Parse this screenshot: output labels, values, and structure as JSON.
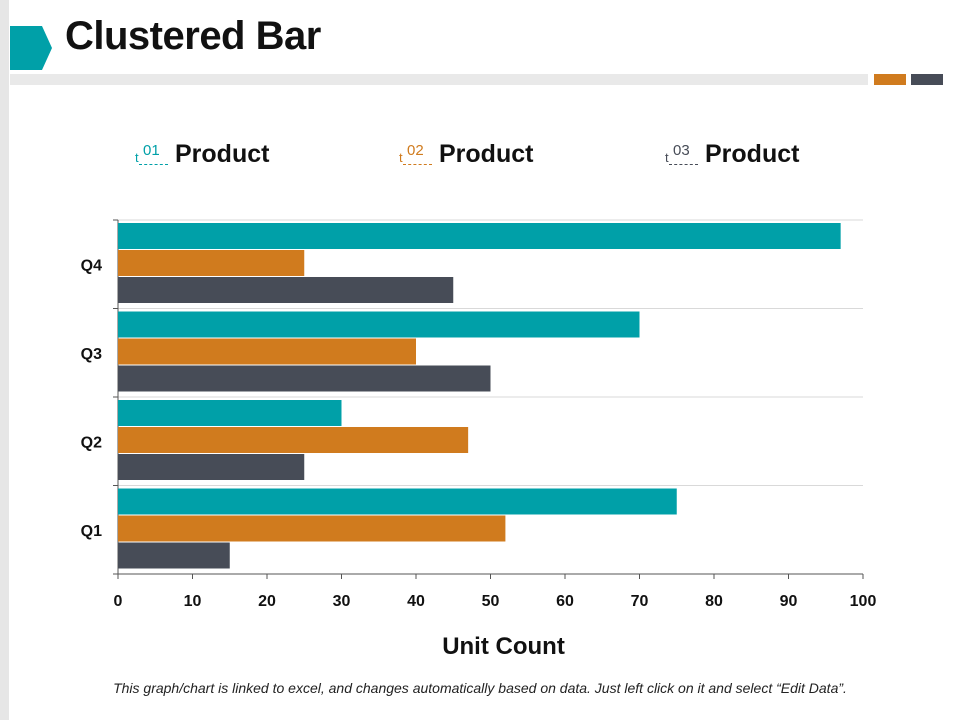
{
  "page": {
    "title": "Clustered Bar",
    "footer_note": "This graph/chart is linked to excel, and changes automatically based on data. Just left click on it and select “Edit Data”."
  },
  "colors": {
    "teal": "#00A0A8",
    "orange": "#D07B1E",
    "slate": "#474C57",
    "rule": "#E9E9E9",
    "strip": "#E6E6E6"
  },
  "chart_data": {
    "type": "bar",
    "orientation": "horizontal",
    "title": "",
    "xlabel": "Unit Count",
    "ylabel": "",
    "xlim": [
      0,
      100
    ],
    "x_ticks": [
      "0",
      "10",
      "20",
      "30",
      "40",
      "50",
      "60",
      "70",
      "80",
      "90",
      "100"
    ],
    "categories": [
      "Q1",
      "Q2",
      "Q3",
      "Q4"
    ],
    "series": [
      {
        "name": "Product",
        "legend_number": "01",
        "legend_prefix": "t",
        "color": "#00A0A8",
        "values": [
          75,
          30,
          70,
          97
        ]
      },
      {
        "name": "Product",
        "legend_number": "02",
        "legend_prefix": "t",
        "color": "#D07B1E",
        "values": [
          52,
          47,
          40,
          25
        ]
      },
      {
        "name": "Product",
        "legend_number": "03",
        "legend_prefix": "t",
        "color": "#474C57",
        "values": [
          15,
          25,
          50,
          45
        ]
      }
    ]
  }
}
